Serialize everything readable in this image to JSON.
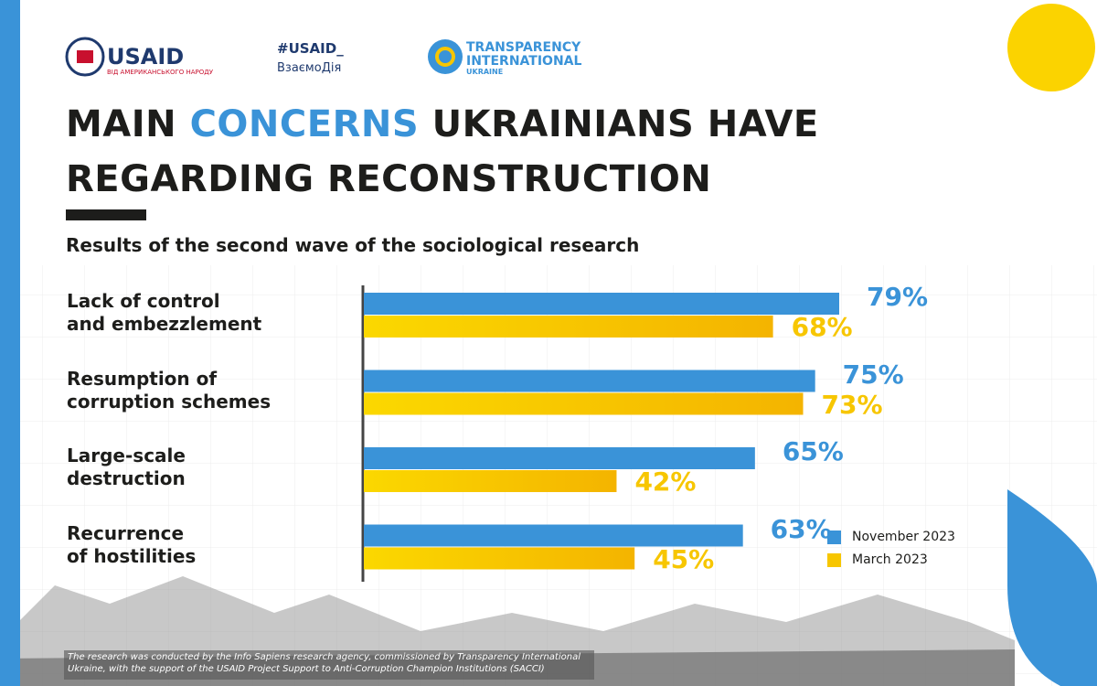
{
  "header": {
    "usaid": "USAID",
    "usaid_sub": "ВІД АМЕРИКАНСЬКОГО НАРОДУ",
    "hashtag": "#USAID_",
    "hashtag_sub": "ВзаємоДія",
    "ti_line1": "TRANSPARENCY",
    "ti_line2": "INTERNATIONAL",
    "ti_line3": "UKRAINE"
  },
  "chart_data": {
    "type": "bar",
    "orientation": "horizontal",
    "title": {
      "line1": [
        "MAIN",
        "CONCERNS",
        "UKRAINIANS HAVE"
      ],
      "line2": "REGARDING RECONSTRUCTION"
    },
    "subtitle": "Results of the second wave of the sociological research",
    "categories": [
      "Lack of control\nand embezzlement",
      "Resumption of\ncorruption schemes",
      "Large-scale\ndestruction",
      "Recurrence\nof hostilities"
    ],
    "series": [
      {
        "name": "November 2023",
        "color": "#3a93d8",
        "values": [
          79,
          75,
          65,
          63
        ],
        "value_labels": [
          "79%",
          "75%",
          "65%",
          "63%"
        ]
      },
      {
        "name": "March 2023",
        "color": "#f7c600",
        "values": [
          68,
          73,
          42,
          45
        ],
        "value_labels": [
          "68%",
          "73%",
          "42%",
          "45%"
        ]
      }
    ],
    "legend": "bottom-right"
  },
  "footnote": "The research was conducted by the Info Sapiens research agency, commissioned by Transparency International Ukraine, with the support of the USAID Project Support to Anti-Corruption Champion Institutions (SACCI)"
}
